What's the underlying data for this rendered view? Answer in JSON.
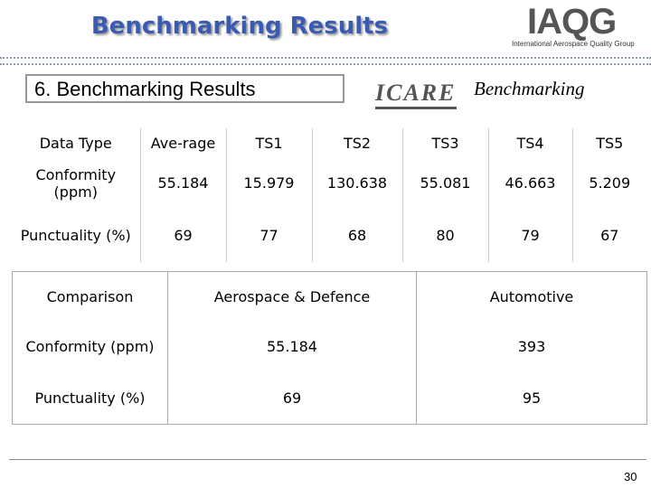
{
  "header": {
    "title": "Benchmarking Results",
    "logo": "IAQG",
    "logo_subtitle": "International Aerospace Quality Group"
  },
  "section": {
    "title": "6. Benchmarking Results",
    "logo": "ICARE",
    "logo_caption": "Benchmarking"
  },
  "table1": {
    "header": [
      "Data Type",
      "Ave-rage",
      "TS1",
      "TS2",
      "TS3",
      "TS4",
      "TS5"
    ],
    "rows": [
      [
        "Conformity (ppm)",
        "55.184",
        "15.979",
        "130.638",
        "55.081",
        "46.663",
        "5.209"
      ],
      [
        "Punctuality (%)",
        "69",
        "77",
        "68",
        "80",
        "79",
        "67"
      ]
    ]
  },
  "table2": {
    "header": [
      "Comparison",
      "Aerospace & Defence",
      "Automotive"
    ],
    "rows": [
      [
        "Conformity (ppm)",
        "55.184",
        "393"
      ],
      [
        "Punctuality (%)",
        "69",
        "95"
      ]
    ]
  },
  "footer": {
    "page": "30"
  }
}
